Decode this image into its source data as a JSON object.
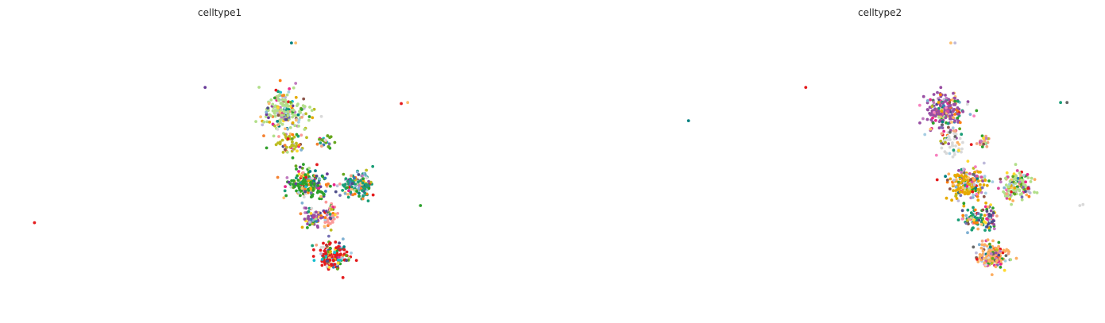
{
  "chart_data": [
    {
      "type": "scatter",
      "title": "celltype1",
      "xlabel": "",
      "ylabel": "",
      "grid": false,
      "axes": "hidden",
      "palette": [
        "#e41a1c",
        "#f58231",
        "#ff7f0e",
        "#2ca02c",
        "#33a02c",
        "#008080",
        "#1b9e77",
        "#377eb8",
        "#6a3d9a",
        "#984ea3",
        "#c07bbf",
        "#e7298a",
        "#fb9a99",
        "#fdbf6f",
        "#ffd92f",
        "#b2df8a",
        "#a6cee3",
        "#8c564b",
        "#bcbd22",
        "#17becf",
        "#e6ab02",
        "#66a61e",
        "#7570b3",
        "#f4a582",
        "#d9d9d9",
        "#bebada",
        "#4d4d8a",
        "#80b1d3"
      ],
      "clusters": [
        {
          "cx": 0.3,
          "cy": 0.81,
          "rx": 0.12,
          "ry": 0.1,
          "n": 170
        },
        {
          "cx": 0.07,
          "cy": 0.1,
          "rx": 0.16,
          "ry": 0.13,
          "n": 200
        },
        {
          "cx": 0.53,
          "cy": 0.11,
          "rx": 0.12,
          "ry": 0.11,
          "n": 140
        },
        {
          "cx": 0.12,
          "cy": 0.43,
          "rx": 0.1,
          "ry": 0.08,
          "n": 70
        },
        {
          "cx": 0.28,
          "cy": 0.42,
          "rx": 0.05,
          "ry": 0.1,
          "n": 45
        },
        {
          "cx": -0.15,
          "cy": -0.62,
          "rx": 0.18,
          "ry": 0.16,
          "n": 210
        },
        {
          "cx": -0.1,
          "cy": -0.3,
          "rx": 0.1,
          "ry": 0.1,
          "n": 50
        },
        {
          "cx": 0.22,
          "cy": -0.32,
          "rx": 0.06,
          "ry": 0.05,
          "n": 25
        }
      ],
      "outliers": [
        {
          "x": -2.5,
          "y": 0.48,
          "group": 0
        },
        {
          "x": -0.9,
          "y": -0.86,
          "group": 8
        },
        {
          "x": -0.09,
          "y": -1.3,
          "group": 5
        },
        {
          "x": -0.05,
          "y": -1.3,
          "group": 13
        },
        {
          "x": -0.05,
          "y": -0.9,
          "group": 10
        },
        {
          "x": -0.3,
          "y": -0.7,
          "group": 13
        },
        {
          "x": 0.94,
          "y": -0.7,
          "group": 0
        },
        {
          "x": 1.0,
          "y": -0.71,
          "group": 13
        },
        {
          "x": 1.12,
          "y": 0.31,
          "group": 3
        }
      ],
      "xlim": [
        -2.6,
        1.2
      ],
      "ylim": [
        -1.45,
        1.3
      ],
      "seed": 11
    },
    {
      "type": "scatter",
      "title": "celltype2",
      "xlabel": "",
      "ylabel": "",
      "grid": false,
      "axes": "hidden",
      "palette": [
        "#e41a1c",
        "#e7298a",
        "#d94f9c",
        "#f781bf",
        "#ff7f0e",
        "#fdae61",
        "#fdbf6f",
        "#ffd92f",
        "#e6ab02",
        "#33a02c",
        "#66a61e",
        "#b2df8a",
        "#bcbd22",
        "#008080",
        "#1b9e77",
        "#377eb8",
        "#a6cee3",
        "#4d4d8a",
        "#7570b3",
        "#bebada",
        "#984ea3",
        "#c07bbf",
        "#8c564b",
        "#d9d9d9",
        "#666666",
        "#80b1d3",
        "#f4a582",
        "#2ca02c"
      ],
      "clusters": [
        {
          "cx": 0.3,
          "cy": 0.81,
          "rx": 0.12,
          "ry": 0.1,
          "n": 170
        },
        {
          "cx": 0.07,
          "cy": 0.1,
          "rx": 0.16,
          "ry": 0.13,
          "n": 200
        },
        {
          "cx": 0.53,
          "cy": 0.11,
          "rx": 0.12,
          "ry": 0.11,
          "n": 140
        },
        {
          "cx": 0.12,
          "cy": 0.43,
          "rx": 0.1,
          "ry": 0.08,
          "n": 70
        },
        {
          "cx": 0.28,
          "cy": 0.42,
          "rx": 0.05,
          "ry": 0.1,
          "n": 45
        },
        {
          "cx": -0.15,
          "cy": -0.62,
          "rx": 0.18,
          "ry": 0.16,
          "n": 210
        },
        {
          "cx": -0.1,
          "cy": -0.3,
          "rx": 0.1,
          "ry": 0.1,
          "n": 50
        },
        {
          "cx": 0.22,
          "cy": -0.32,
          "rx": 0.06,
          "ry": 0.05,
          "n": 25
        }
      ],
      "outliers": [
        {
          "x": -2.55,
          "y": -0.53,
          "group": 13
        },
        {
          "x": -1.45,
          "y": -0.86,
          "group": 0
        },
        {
          "x": -0.09,
          "y": -1.3,
          "group": 6
        },
        {
          "x": -0.05,
          "y": -1.3,
          "group": 19
        },
        {
          "x": -0.25,
          "y": -0.71,
          "group": 21
        },
        {
          "x": 0.94,
          "y": -0.71,
          "group": 14
        },
        {
          "x": 1.0,
          "y": -0.71,
          "group": 24
        },
        {
          "x": 1.12,
          "y": 0.31,
          "group": 23
        },
        {
          "x": 1.15,
          "y": 0.3,
          "group": 23
        }
      ],
      "xlim": [
        -2.6,
        1.2
      ],
      "ylim": [
        -1.45,
        1.3
      ],
      "seed": 23
    }
  ]
}
